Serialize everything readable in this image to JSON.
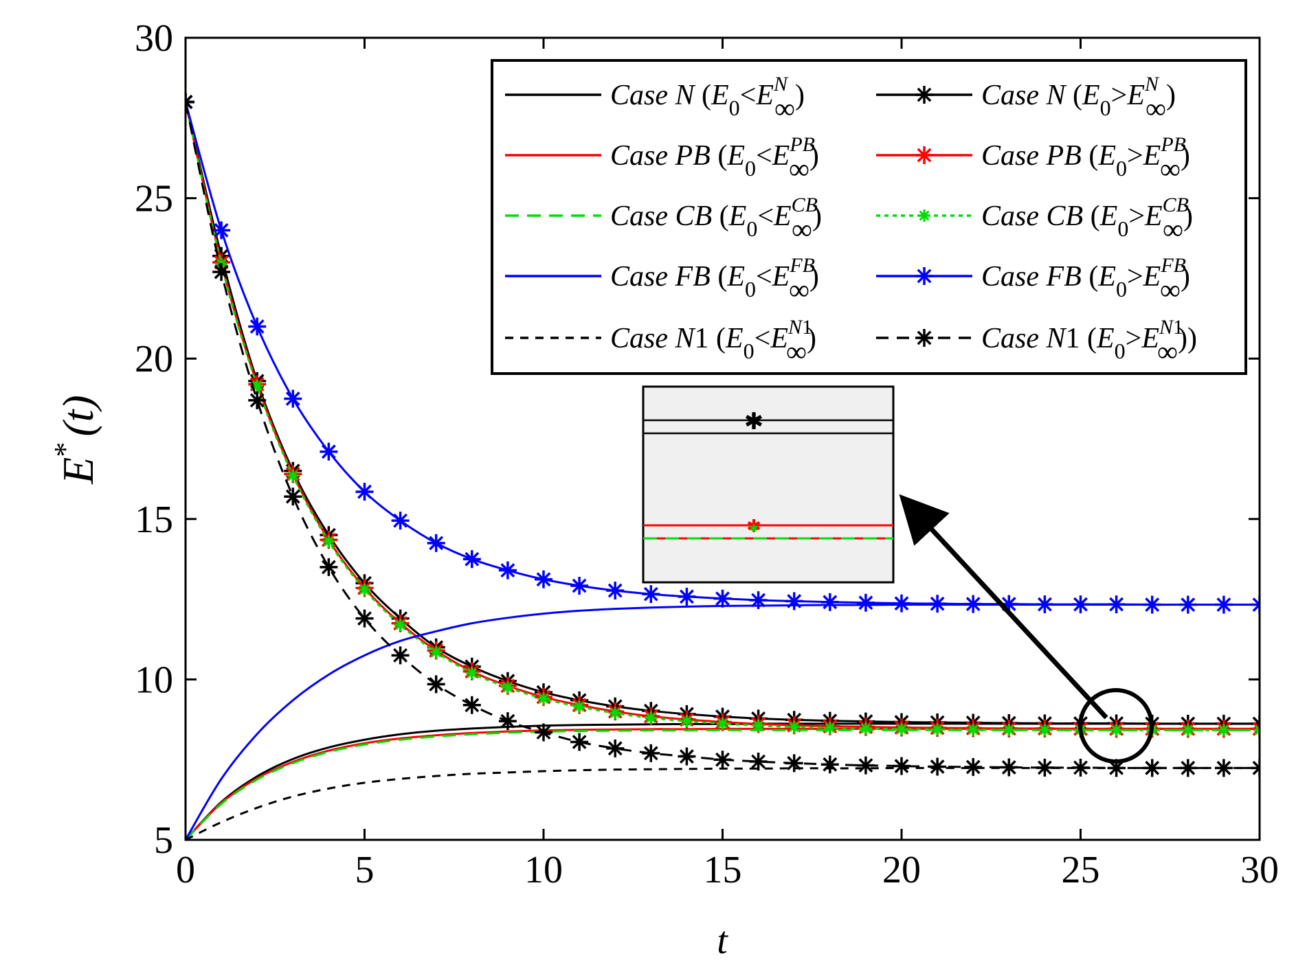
{
  "chart_data": {
    "type": "line",
    "title": "",
    "xlabel": "t",
    "ylabel": "E*(t)",
    "ylabel_base": "E",
    "ylabel_sup": "*",
    "ylabel_arg": "(t)",
    "xlim": [
      0,
      30
    ],
    "ylim": [
      5,
      30
    ],
    "xticks": [
      0,
      5,
      10,
      15,
      20,
      25,
      30
    ],
    "yticks": [
      5,
      10,
      15,
      20,
      25,
      30
    ],
    "x": [
      0,
      1,
      2,
      3,
      4,
      5,
      6,
      7,
      8,
      9,
      10,
      11,
      12,
      13,
      14,
      15,
      16,
      17,
      18,
      19,
      20,
      21,
      22,
      23,
      24,
      25,
      26,
      27,
      28,
      29,
      30
    ],
    "series": [
      {
        "key": "N_lt",
        "name": "Case N (E0<E∞N)",
        "case_word": "Case",
        "case_id": "N",
        "relation": "<",
        "sup": "N",
        "color": "#000000",
        "dash": "",
        "marker": "none",
        "values": [
          5,
          6.18,
          6.98,
          7.52,
          7.88,
          8.12,
          8.29,
          8.4,
          8.47,
          8.52,
          8.56,
          8.58,
          8.59,
          8.6,
          8.61,
          8.61,
          8.62,
          8.62,
          8.62,
          8.62,
          8.62,
          8.62,
          8.62,
          8.62,
          8.62,
          8.62,
          8.62,
          8.62,
          8.62,
          8.62,
          8.62
        ]
      },
      {
        "key": "N_gt",
        "name": "Case N (E0>E∞N)",
        "case_word": "Case",
        "case_id": "N",
        "relation": ">",
        "sup": "N",
        "color": "#000000",
        "dash": "",
        "marker": "star",
        "values": [
          28,
          23.2,
          19.3,
          16.5,
          14.5,
          13.0,
          11.9,
          11.0,
          10.4,
          9.95,
          9.6,
          9.35,
          9.16,
          9.02,
          8.92,
          8.84,
          8.78,
          8.74,
          8.71,
          8.69,
          8.67,
          8.66,
          8.65,
          8.64,
          8.63,
          8.63,
          8.63,
          8.62,
          8.62,
          8.62,
          8.62
        ]
      },
      {
        "key": "PB_lt",
        "name": "Case PB (E0<E∞PB)",
        "case_word": "Case",
        "case_id": "PB",
        "relation": "<",
        "sup": "PB",
        "color": "#ff0000",
        "dash": "",
        "marker": "none",
        "values": [
          5,
          6.15,
          6.92,
          7.43,
          7.78,
          8.01,
          8.16,
          8.26,
          8.33,
          8.38,
          8.41,
          8.43,
          8.44,
          8.45,
          8.45,
          8.46,
          8.46,
          8.46,
          8.46,
          8.46,
          8.46,
          8.46,
          8.46,
          8.46,
          8.46,
          8.46,
          8.46,
          8.46,
          8.46,
          8.46,
          8.46
        ]
      },
      {
        "key": "PB_gt",
        "name": "Case PB (E0>E∞PB)",
        "case_word": "Case",
        "case_id": "PB",
        "relation": ">",
        "sup": "PB",
        "color": "#ff0000",
        "dash": "",
        "marker": "star",
        "values": [
          28,
          23.0,
          19.2,
          16.4,
          14.35,
          12.85,
          11.75,
          10.9,
          10.25,
          9.8,
          9.45,
          9.2,
          9.0,
          8.85,
          8.75,
          8.67,
          8.61,
          8.57,
          8.54,
          8.52,
          8.5,
          8.49,
          8.48,
          8.47,
          8.47,
          8.46,
          8.46,
          8.46,
          8.46,
          8.46,
          8.46
        ]
      },
      {
        "key": "CB_lt",
        "name": "Case CB (E0<E∞CB)",
        "case_word": "Case",
        "case_id": "CB",
        "relation": "<",
        "sup": "CB",
        "color": "#00dd00",
        "dash": "20,12",
        "marker": "none",
        "values": [
          5,
          6.12,
          6.88,
          7.39,
          7.74,
          7.97,
          8.12,
          8.22,
          8.29,
          8.34,
          8.37,
          8.39,
          8.4,
          8.41,
          8.41,
          8.42,
          8.42,
          8.42,
          8.42,
          8.42,
          8.42,
          8.42,
          8.42,
          8.42,
          8.42,
          8.42,
          8.42,
          8.42,
          8.42,
          8.42,
          8.42
        ]
      },
      {
        "key": "CB_gt",
        "name": "Case CB (E0>E∞CB)",
        "case_word": "Case",
        "case_id": "CB",
        "relation": ">",
        "sup": "CB",
        "color": "#00dd00",
        "dash": "6,6",
        "marker": "star",
        "values": [
          28,
          22.95,
          19.15,
          16.35,
          14.3,
          12.8,
          11.7,
          10.85,
          10.2,
          9.75,
          9.4,
          9.15,
          8.95,
          8.8,
          8.7,
          8.62,
          8.56,
          8.52,
          8.49,
          8.47,
          8.45,
          8.44,
          8.43,
          8.43,
          8.42,
          8.42,
          8.42,
          8.42,
          8.42,
          8.42,
          8.42
        ]
      },
      {
        "key": "FB_lt",
        "name": "Case FB (E0<E∞FB)",
        "case_word": "Case",
        "case_id": "FB",
        "relation": "<",
        "sup": "FB",
        "color": "#0000ff",
        "dash": "",
        "marker": "none",
        "values": [
          5,
          6.9,
          8.3,
          9.35,
          10.15,
          10.75,
          11.2,
          11.5,
          11.75,
          11.92,
          12.05,
          12.14,
          12.2,
          12.24,
          12.27,
          12.29,
          12.3,
          12.31,
          12.32,
          12.32,
          12.33,
          12.33,
          12.33,
          12.33,
          12.33,
          12.33,
          12.33,
          12.33,
          12.33,
          12.33,
          12.33
        ]
      },
      {
        "key": "FB_gt",
        "name": "Case FB (E0>E∞FB)",
        "case_word": "Case",
        "case_id": "FB",
        "relation": ">",
        "sup": "FB",
        "color": "#0000ff",
        "dash": "",
        "marker": "star",
        "values": [
          28,
          24.0,
          21.0,
          18.75,
          17.1,
          15.85,
          14.95,
          14.25,
          13.75,
          13.4,
          13.12,
          12.92,
          12.77,
          12.66,
          12.58,
          12.52,
          12.47,
          12.44,
          12.41,
          12.39,
          12.37,
          12.36,
          12.35,
          12.35,
          12.34,
          12.34,
          12.34,
          12.33,
          12.33,
          12.33,
          12.33
        ]
      },
      {
        "key": "N1_lt",
        "name": "Case N1 (E0<E∞N1)",
        "case_word": "Case",
        "case_id": "N",
        "case_num": "1",
        "relation": "<",
        "sup": "N1",
        "color": "#000000",
        "dash": "12,10",
        "marker": "none",
        "values": [
          5,
          5.55,
          6.0,
          6.35,
          6.6,
          6.78,
          6.9,
          6.99,
          7.06,
          7.1,
          7.14,
          7.17,
          7.19,
          7.2,
          7.21,
          7.22,
          7.22,
          7.23,
          7.23,
          7.23,
          7.24,
          7.24,
          7.24,
          7.24,
          7.24,
          7.24,
          7.24,
          7.24,
          7.24,
          7.24,
          7.24
        ]
      },
      {
        "key": "N1_gt",
        "name": "Case N1 (E0>E∞N1))",
        "case_word": "Case",
        "case_id": "N",
        "case_num": "1",
        "relation": ">",
        "sup": "N1",
        "suffix": ")",
        "color": "#000000",
        "dash": "18,12",
        "marker": "star",
        "values": [
          28,
          22.7,
          18.7,
          15.7,
          13.5,
          11.9,
          10.75,
          9.85,
          9.2,
          8.7,
          8.35,
          8.05,
          7.85,
          7.7,
          7.6,
          7.5,
          7.44,
          7.39,
          7.35,
          7.32,
          7.3,
          7.28,
          7.27,
          7.26,
          7.25,
          7.25,
          7.24,
          7.24,
          7.24,
          7.24,
          7.24
        ]
      }
    ],
    "legend": {
      "position": "top-right",
      "subscript_label": "0",
      "infinity_symbol": "∞"
    },
    "inset": {
      "description": "zoom of region around t=26"
    }
  }
}
